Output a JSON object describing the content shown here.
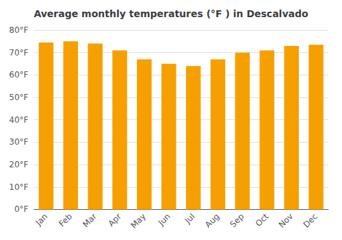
{
  "chart_data": {
    "type": "bar",
    "title": "Average monthly temperatures (°F ) in Descalvado",
    "categories": [
      "Jan",
      "Feb",
      "Mar",
      "Apr",
      "May",
      "Jun",
      "Jul",
      "Aug",
      "Sep",
      "Oct",
      "Nov",
      "Dec"
    ],
    "values": [
      74.5,
      75.0,
      74.0,
      71.0,
      67.0,
      65.0,
      64.0,
      67.0,
      70.0,
      71.0,
      73.0,
      73.5
    ],
    "color": "#F5A000",
    "ylim": [
      0,
      80
    ],
    "yticks": [
      {
        "value": 0,
        "label": "0°F"
      },
      {
        "value": 10,
        "label": "10°F"
      },
      {
        "value": 20,
        "label": "20°F"
      },
      {
        "value": 30,
        "label": "30°F"
      },
      {
        "value": 40,
        "label": "40°F"
      },
      {
        "value": 50,
        "label": "50°F"
      },
      {
        "value": 60,
        "label": "60°F"
      },
      {
        "value": 70,
        "label": "70°F"
      },
      {
        "value": 80,
        "label": "80°F"
      }
    ],
    "grid": true
  }
}
